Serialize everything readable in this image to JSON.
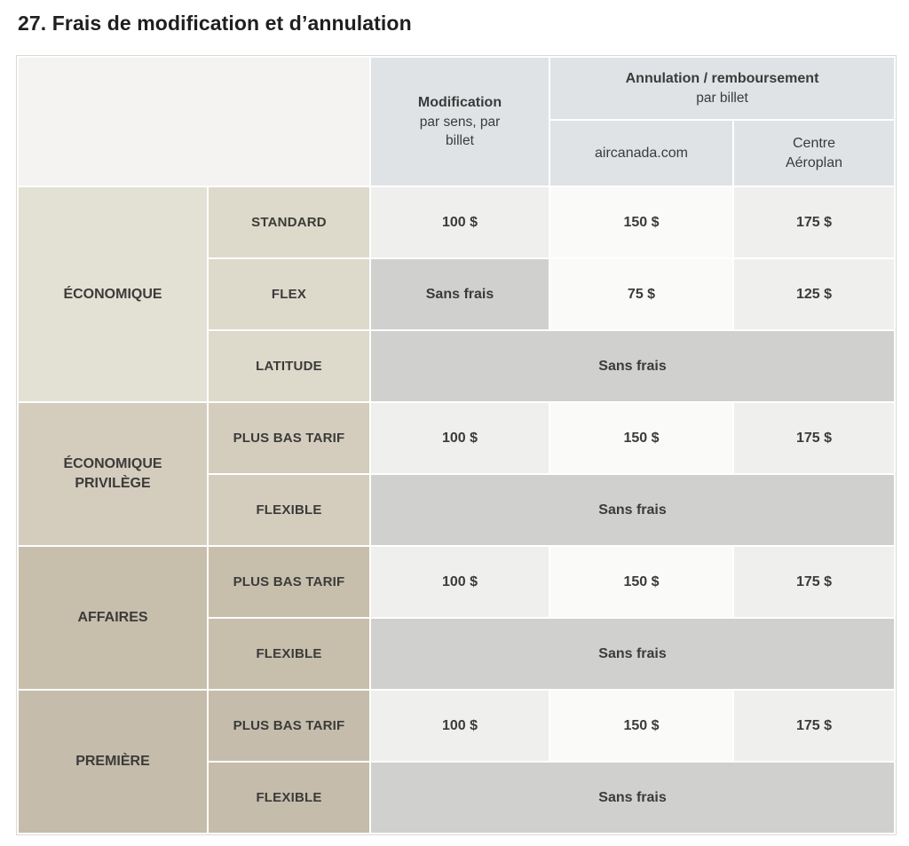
{
  "page": {
    "title": "27. Frais de modification et d’annulation"
  },
  "table": {
    "header": {
      "col_modification": {
        "title": "Modification",
        "subtitle": "par sens, par billet"
      },
      "col_annulation": {
        "title": "Annulation / remboursement",
        "subtitle": "par billet"
      },
      "col_aircanada": "aircanada.com",
      "col_aeroplan": "Centre Aéroplan"
    },
    "groups": [
      {
        "name": "ÉCONOMIQUE",
        "rows": [
          {
            "brand": "STANDARD",
            "modification": "100 $",
            "aircanada": "150 $",
            "aeroplan": "175 $"
          },
          {
            "brand": "FLEX",
            "modification": "Sans frais",
            "aircanada": "75 $",
            "aeroplan": "125 $"
          },
          {
            "brand": "LATITUDE",
            "all_columns": "Sans frais"
          }
        ]
      },
      {
        "name": "ÉCONOMIQUE PRIVILÈGE",
        "rows": [
          {
            "brand": "PLUS BAS TARIF",
            "modification": "100 $",
            "aircanada": "150 $",
            "aeroplan": "175 $"
          },
          {
            "brand": "FLEXIBLE",
            "all_columns": "Sans frais"
          }
        ]
      },
      {
        "name": "AFFAIRES",
        "rows": [
          {
            "brand": "PLUS BAS TARIF",
            "modification": "100 $",
            "aircanada": "150 $",
            "aeroplan": "175 $"
          },
          {
            "brand": "FLEXIBLE",
            "all_columns": "Sans frais"
          }
        ]
      },
      {
        "name": "PREMIÈRE",
        "rows": [
          {
            "brand": "PLUS BAS TARIF",
            "modification": "100 $",
            "aircanada": "150 $",
            "aeroplan": "175 $"
          },
          {
            "brand": "FLEXIBLE",
            "all_columns": "Sans frais"
          }
        ]
      }
    ],
    "colors": {
      "corner_bg": "#f4f3f1",
      "header_bg": "#dfe3e6",
      "group_bg": [
        "#e3e0d4",
        "#d4cdbe",
        "#c7beac",
        "#c5bcab"
      ],
      "brand_bg": [
        "#ddd9cb",
        "#d4cdbe",
        "#c7beac",
        "#c5bcab"
      ],
      "fee_light_bg": "#efefed",
      "fee_white_bg": "#fafaf9",
      "no_fee_bg": "#d0d0ce",
      "text": "#3b3b39"
    }
  }
}
